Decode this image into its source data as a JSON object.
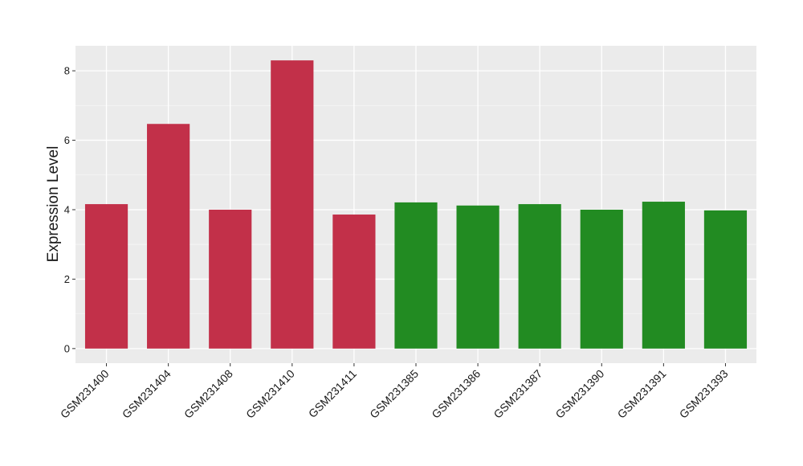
{
  "chart_data": {
    "type": "bar",
    "y_label": "Expression Level",
    "categories": [
      "GSM231400",
      "GSM231404",
      "GSM231408",
      "GSM231410",
      "GSM231411",
      "GSM231385",
      "GSM231386",
      "GSM231387",
      "GSM231390",
      "GSM231391",
      "GSM231393"
    ],
    "values": [
      4.16,
      6.47,
      4.0,
      8.3,
      3.86,
      4.21,
      4.12,
      4.16,
      4.0,
      4.23,
      3.98
    ],
    "colors": [
      "#c23049",
      "#c23049",
      "#c23049",
      "#c23049",
      "#c23049",
      "#228b22",
      "#228b22",
      "#228b22",
      "#228b22",
      "#228b22",
      "#228b22"
    ],
    "ylim": [
      -0.42,
      8.72
    ],
    "yticks": [
      0,
      2,
      4,
      6,
      8
    ],
    "grid": true
  }
}
